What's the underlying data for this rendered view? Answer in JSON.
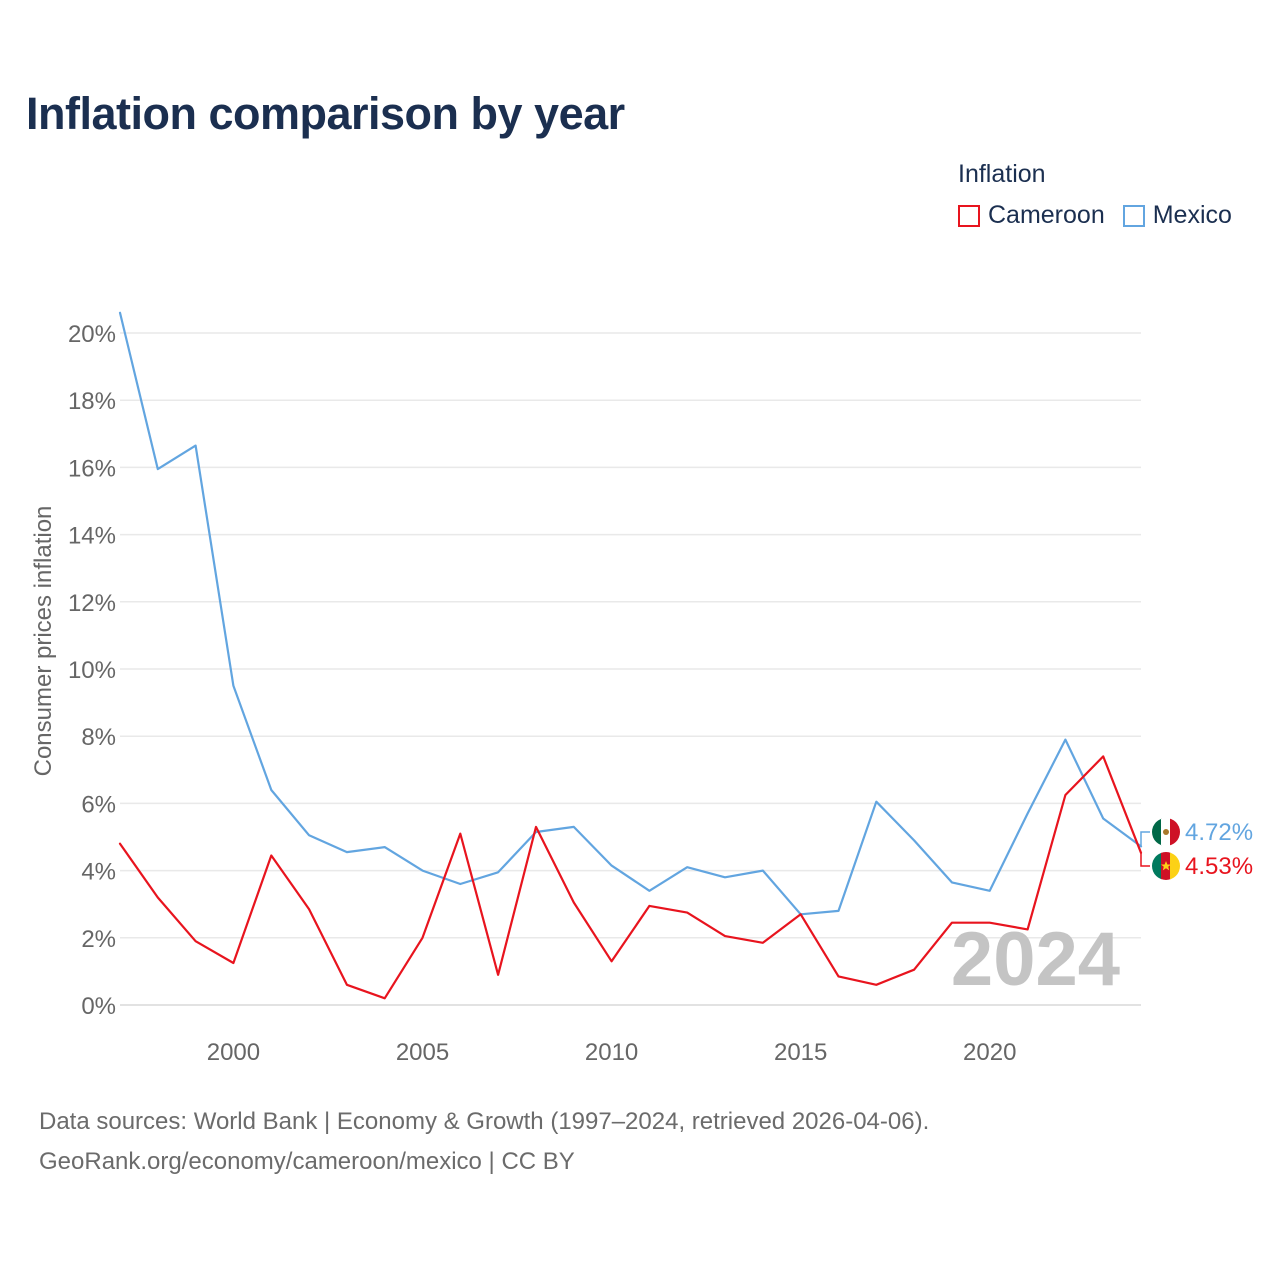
{
  "title": "Inflation comparison by year",
  "legend": {
    "title": "Inflation",
    "items": [
      {
        "label": "Cameroon",
        "color": "#e8141e"
      },
      {
        "label": "Mexico",
        "color": "#62a5e0"
      }
    ]
  },
  "source": {
    "line1": "Data sources: World Bank | Economy & Growth (1997–2024, retrieved 2026-04-06).",
    "line2": "GeoRank.org/economy/cameroon/mexico | CC BY"
  },
  "chart_data": {
    "type": "line",
    "title": "Inflation comparison by year",
    "xlabel": "",
    "ylabel": "Consumer prices inflation",
    "xlim": [
      1997,
      2024
    ],
    "ylim": [
      0,
      20
    ],
    "x_ticks": [
      2000,
      2005,
      2010,
      2015,
      2020
    ],
    "y_ticks": [
      0,
      2,
      4,
      6,
      8,
      10,
      12,
      14,
      16,
      18,
      20
    ],
    "y_tick_labels": [
      "0%",
      "2%",
      "4%",
      "6%",
      "8%",
      "10%",
      "12%",
      "14%",
      "16%",
      "18%",
      "20%"
    ],
    "x": [
      1997,
      1998,
      1999,
      2000,
      2001,
      2002,
      2003,
      2004,
      2005,
      2006,
      2007,
      2008,
      2009,
      2010,
      2011,
      2012,
      2013,
      2014,
      2015,
      2016,
      2017,
      2018,
      2019,
      2020,
      2021,
      2022,
      2023,
      2024
    ],
    "series": [
      {
        "name": "Cameroon",
        "color": "#e8141e",
        "values": [
          4.8,
          3.2,
          1.9,
          1.25,
          4.45,
          2.85,
          0.6,
          0.2,
          2.0,
          5.1,
          0.9,
          5.3,
          3.05,
          1.3,
          2.95,
          2.75,
          2.05,
          1.85,
          2.7,
          0.85,
          0.6,
          1.05,
          2.45,
          2.45,
          2.25,
          6.25,
          7.4,
          4.53
        ]
      },
      {
        "name": "Mexico",
        "color": "#62a5e0",
        "values": [
          20.6,
          15.95,
          16.65,
          9.5,
          6.4,
          5.05,
          4.55,
          4.7,
          4.0,
          3.6,
          3.95,
          5.15,
          5.3,
          4.15,
          3.4,
          4.1,
          3.8,
          4.0,
          2.7,
          2.8,
          6.05,
          4.9,
          3.65,
          3.4,
          5.7,
          7.9,
          5.55,
          4.72
        ]
      }
    ],
    "end_labels": [
      {
        "series": "Mexico",
        "text": "4.72%",
        "flag": "mexico-flag"
      },
      {
        "series": "Cameroon",
        "text": "4.53%",
        "flag": "cameroon-flag"
      }
    ],
    "year_watermark": "2024",
    "grid": true,
    "legend_position": "top-right"
  }
}
